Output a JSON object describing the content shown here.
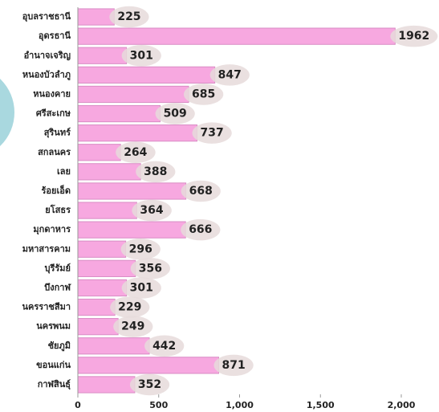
{
  "chart_data": {
    "type": "bar",
    "orientation": "horizontal",
    "categories": [
      "อุบลราชธานี",
      "อุดรธานี",
      "อำนาจเจริญ",
      "หนองบัวลำภู",
      "หนองคาย",
      "ศรีสะเกษ",
      "สุรินทร์",
      "สกลนคร",
      "เลย",
      "ร้อยเอ็ด",
      "ยโสธร",
      "มุกดาหาร",
      "มหาสารคาม",
      "บุรีรัมย์",
      "บึงกาฬ",
      "นครราชสีมา",
      "นครพนม",
      "ชัยภูมิ",
      "ขอนแก่น",
      "กาฬสินธุ์"
    ],
    "values": [
      225,
      1962,
      301,
      847,
      685,
      509,
      737,
      264,
      388,
      668,
      364,
      666,
      296,
      356,
      301,
      229,
      249,
      442,
      871,
      352
    ],
    "color": "#f7a8e0",
    "xlim": [
      0,
      2000
    ],
    "xticks": [
      0,
      500,
      {
        "value": 1000,
        "label": "1,000"
      },
      {
        "value": 1500,
        "label": "1,500"
      },
      {
        "value": 2000,
        "label": "2,000"
      }
    ],
    "grid": false
  }
}
